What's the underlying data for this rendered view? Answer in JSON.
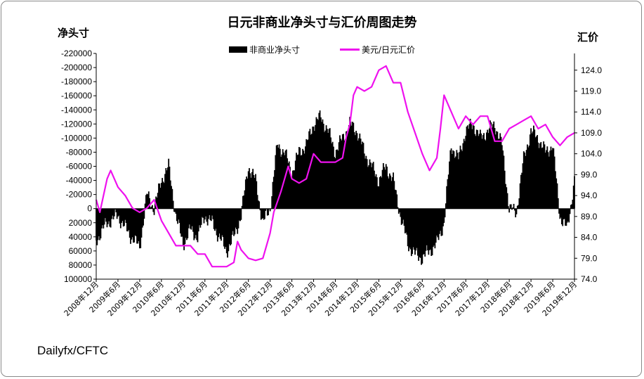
{
  "chart_data": {
    "type": "bar+line",
    "title": "日元非商业净头寸与汇价周图走势",
    "left_axis": {
      "label": "净头寸",
      "reversed": true,
      "range": [
        -220000,
        100000
      ],
      "ticks": [
        "-220000",
        "-200000",
        "-180000",
        "-160000",
        "-140000",
        "-120000",
        "-100000",
        "-80000",
        "-60000",
        "-40000",
        "-20000",
        "0",
        "20000",
        "40000",
        "60000",
        "80000",
        "100000"
      ]
    },
    "right_axis": {
      "label": "汇价",
      "range": [
        74.0,
        128.0
      ],
      "ticks": [
        "124.0",
        "119.0",
        "114.0",
        "109.0",
        "104.0",
        "99.0",
        "94.0",
        "89.0",
        "84.0",
        "79.0",
        "74.0"
      ]
    },
    "x_axis": {
      "range": [
        "2008-12",
        "2019-12"
      ],
      "ticks": [
        "2008年12月",
        "2009年6月",
        "2009年12月",
        "2010年6月",
        "2010年12月",
        "2011年6月",
        "2011年12月",
        "2012年6月",
        "2012年12月",
        "2013年6月",
        "2013年12月",
        "2014年6月",
        "2014年12月",
        "2015年6月",
        "2015年12月",
        "2016年6月",
        "2016年12月",
        "2017年6月",
        "2017年12月",
        "2018年6月",
        "2018年12月",
        "2019年6月",
        "2019年12月"
      ]
    },
    "legend": {
      "placement": "top",
      "entries": [
        "非商业净头寸",
        "美元/日元汇价"
      ]
    },
    "series": [
      {
        "name": "非商业净头寸",
        "kind": "bar",
        "axis": "left",
        "color": "#000000",
        "dates": [
          "2008-12",
          "2009-03",
          "2009-06",
          "2009-09",
          "2009-12",
          "2010-02",
          "2010-04",
          "2010-06",
          "2010-08",
          "2010-10",
          "2010-12",
          "2011-02",
          "2011-04",
          "2011-06",
          "2011-08",
          "2011-10",
          "2011-12",
          "2012-02",
          "2012-04",
          "2012-06",
          "2012-08",
          "2012-10",
          "2012-12",
          "2013-02",
          "2013-04",
          "2013-06",
          "2013-08",
          "2013-10",
          "2013-12",
          "2014-02",
          "2014-04",
          "2014-06",
          "2014-08",
          "2014-10",
          "2014-12",
          "2015-02",
          "2015-04",
          "2015-06",
          "2015-08",
          "2015-10",
          "2015-12",
          "2016-02",
          "2016-04",
          "2016-06",
          "2016-08",
          "2016-10",
          "2016-12",
          "2017-02",
          "2017-04",
          "2017-06",
          "2017-08",
          "2017-10",
          "2017-12",
          "2018-02",
          "2018-04",
          "2018-06",
          "2018-08",
          "2018-10",
          "2018-12",
          "2019-02",
          "2019-04",
          "2019-06",
          "2019-08",
          "2019-10",
          "2019-12"
        ],
        "values": [
          45000,
          20000,
          10000,
          35000,
          55000,
          -20000,
          0,
          -40000,
          -60000,
          10000,
          50000,
          30000,
          40000,
          10000,
          20000,
          40000,
          60000,
          40000,
          10000,
          -60000,
          -40000,
          20000,
          0,
          -90000,
          -80000,
          -50000,
          -80000,
          -90000,
          -120000,
          -130000,
          -110000,
          -80000,
          -100000,
          -120000,
          -110000,
          -80000,
          -60000,
          -40000,
          -60000,
          -40000,
          10000,
          50000,
          65000,
          70000,
          60000,
          50000,
          20000,
          -90000,
          -70000,
          -110000,
          -120000,
          -100000,
          -110000,
          -120000,
          -90000,
          0,
          5000,
          -70000,
          -110000,
          -100000,
          -80000,
          -90000,
          10000,
          30000,
          -40000
        ]
      },
      {
        "name": "美元/日元汇价",
        "kind": "line",
        "axis": "right",
        "color": "#ee11ee",
        "dates": [
          "2008-12",
          "2009-01",
          "2009-03",
          "2009-04",
          "2009-06",
          "2009-08",
          "2009-10",
          "2009-12",
          "2010-02",
          "2010-04",
          "2010-06",
          "2010-08",
          "2010-10",
          "2010-12",
          "2011-02",
          "2011-04",
          "2011-06",
          "2011-08",
          "2011-10",
          "2011-12",
          "2012-02",
          "2012-03",
          "2012-04",
          "2012-06",
          "2012-08",
          "2012-10",
          "2012-12",
          "2013-01",
          "2013-03",
          "2013-05",
          "2013-06",
          "2013-08",
          "2013-10",
          "2013-12",
          "2014-02",
          "2014-04",
          "2014-06",
          "2014-08",
          "2014-09",
          "2014-10",
          "2014-11",
          "2014-12",
          "2015-02",
          "2015-04",
          "2015-06",
          "2015-08",
          "2015-10",
          "2015-12",
          "2016-02",
          "2016-04",
          "2016-06",
          "2016-08",
          "2016-10",
          "2016-11",
          "2016-12",
          "2017-02",
          "2017-04",
          "2017-06",
          "2017-08",
          "2017-10",
          "2017-12",
          "2018-02",
          "2018-04",
          "2018-06",
          "2018-08",
          "2018-10",
          "2018-12",
          "2019-02",
          "2019-04",
          "2019-06",
          "2019-08",
          "2019-10",
          "2019-12"
        ],
        "values": [
          93,
          90,
          98,
          100,
          96,
          94,
          91,
          90,
          91,
          93,
          88,
          85,
          82,
          82,
          82,
          80,
          80,
          77,
          77,
          77,
          78,
          83,
          81,
          79,
          78.5,
          79,
          85,
          90,
          95,
          101,
          98,
          97,
          98,
          104,
          102,
          102,
          102,
          103,
          108,
          111,
          118,
          120,
          119,
          120,
          124,
          125,
          121,
          121,
          114,
          109,
          104,
          100,
          103,
          110,
          118,
          114,
          110,
          113,
          111,
          113,
          113,
          107,
          107,
          110,
          111,
          112,
          113,
          110,
          111,
          108,
          106,
          108,
          109
        ]
      }
    ]
  },
  "source": "Dailyfx/CFTC"
}
